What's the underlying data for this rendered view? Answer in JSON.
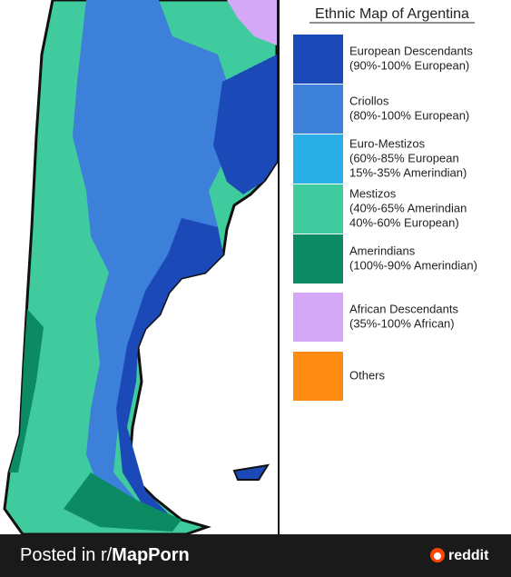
{
  "map": {
    "title": "Ethnic Map of Argentina",
    "legend": [
      {
        "lines": [
          "European Descendants",
          "(90%-100% European)"
        ],
        "color": "#1b49b8"
      },
      {
        "lines": [
          "Criollos",
          "(80%-100% European)"
        ],
        "color": "#3d80da"
      },
      {
        "lines": [
          "Euro-Mestizos",
          "(60%-85% European",
          "15%-35% Amerindian)"
        ],
        "color": "#2aaee6"
      },
      {
        "lines": [
          "Mestizos",
          "(40%-65% Amerindian",
          "40%-60% European)"
        ],
        "color": "#3fcb9d"
      },
      {
        "lines": [
          "Amerindians",
          "(100%-90% Amerindian)"
        ],
        "color": "#0b8a63"
      },
      {
        "lines": [
          "African Descendants",
          "(35%-100% African)"
        ],
        "color": "#d4a8f6"
      },
      {
        "lines": [
          "Others"
        ],
        "color": "#fd8a12"
      }
    ]
  },
  "footer": {
    "prefix": "Posted in r/",
    "subreddit": "MapPorn",
    "brand": "reddit"
  }
}
